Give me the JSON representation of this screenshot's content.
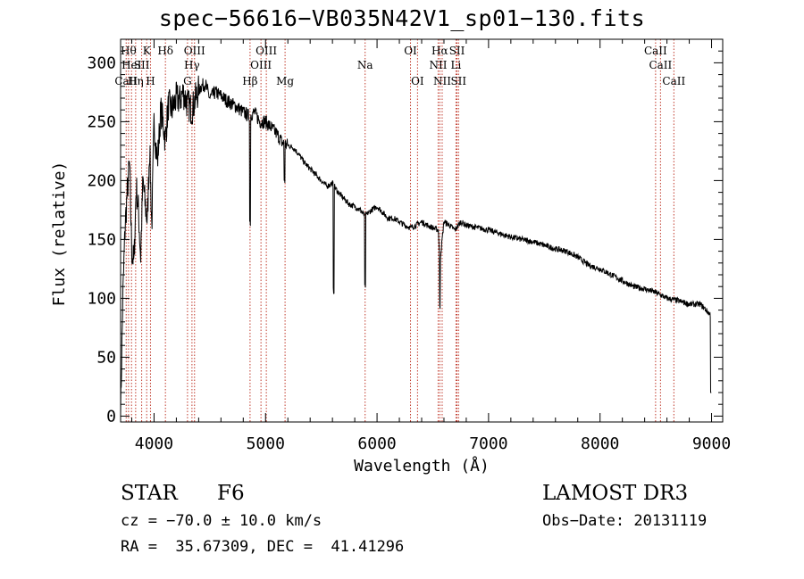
{
  "chart_data": {
    "type": "line",
    "title": "spec−56616−VB035N42V1_sp01−130.fits",
    "xlabel": "Wavelength (Å)",
    "ylabel": "Flux (relative)",
    "xlim": [
      3700,
      9100
    ],
    "ylim": [
      -5,
      320
    ],
    "x_ticks": [
      4000,
      5000,
      6000,
      7000,
      8000,
      9000
    ],
    "y_ticks": [
      0,
      50,
      100,
      150,
      200,
      250,
      300
    ],
    "series": [
      {
        "name": "flux",
        "x": [
          3700,
          3720,
          3740,
          3760,
          3780,
          3800,
          3820,
          3840,
          3860,
          3880,
          3900,
          3920,
          3940,
          3960,
          3980,
          4000,
          4030,
          4060,
          4080,
          4100,
          4130,
          4160,
          4200,
          4230,
          4260,
          4300,
          4340,
          4380,
          4420,
          4460,
          4500,
          4550,
          4600,
          4650,
          4700,
          4750,
          4800,
          4850,
          4900,
          4950,
          5000,
          5050,
          5100,
          5150,
          5200,
          5250,
          5300,
          5350,
          5400,
          5450,
          5500,
          5550,
          5600,
          5650,
          5700,
          5750,
          5800,
          5850,
          5890,
          5950,
          6000,
          6050,
          6100,
          6150,
          6200,
          6250,
          6300,
          6350,
          6400,
          6450,
          6500,
          6550,
          6563,
          6600,
          6650,
          6700,
          6750,
          6800,
          6900,
          7000,
          7100,
          7200,
          7300,
          7400,
          7500,
          7600,
          7700,
          7800,
          7900,
          8000,
          8100,
          8200,
          8300,
          8400,
          8500,
          8600,
          8700,
          8800,
          8900,
          8950,
          9000
        ],
        "y": [
          0,
          100,
          160,
          190,
          215,
          140,
          130,
          195,
          175,
          135,
          200,
          180,
          165,
          230,
          160,
          250,
          215,
          260,
          250,
          235,
          265,
          260,
          270,
          268,
          275,
          265,
          260,
          272,
          280,
          282,
          270,
          275,
          272,
          268,
          265,
          262,
          258,
          255,
          258,
          250,
          250,
          245,
          240,
          232,
          230,
          228,
          222,
          215,
          210,
          205,
          200,
          195,
          198,
          190,
          185,
          180,
          178,
          175,
          170,
          175,
          178,
          173,
          168,
          168,
          165,
          162,
          160,
          162,
          165,
          162,
          160,
          158,
          130,
          165,
          162,
          158,
          165,
          162,
          160,
          158,
          155,
          152,
          150,
          148,
          145,
          142,
          140,
          135,
          128,
          125,
          120,
          115,
          110,
          108,
          105,
          100,
          98,
          95,
          95,
          90,
          85
        ],
        "color": "#000000"
      }
    ],
    "line_ids": [
      {
        "wl": 3750,
        "row": 3,
        "label": "CaII"
      },
      {
        "wl": 3771,
        "row": 1,
        "label": "Hθ"
      },
      {
        "wl": 3798,
        "row": 2,
        "label": "HeI"
      },
      {
        "wl": 3835,
        "row": 3,
        "label": "Hη"
      },
      {
        "wl": 3889,
        "row": 2,
        "label": "SII"
      },
      {
        "wl": 3934,
        "row": 1,
        "label": "K"
      },
      {
        "wl": 3968,
        "row": 3,
        "label": "H"
      },
      {
        "wl": 4102,
        "row": 1,
        "label": "Hδ"
      },
      {
        "wl": 4300,
        "row": 3,
        "label": "G"
      },
      {
        "wl": 4340,
        "row": 2,
        "label": "Hγ"
      },
      {
        "wl": 4363,
        "row": 1,
        "label": "OIII"
      },
      {
        "wl": 4861,
        "row": 3,
        "label": "Hβ"
      },
      {
        "wl": 4959,
        "row": 2,
        "label": "OIII"
      },
      {
        "wl": 5007,
        "row": 1,
        "label": "OIII"
      },
      {
        "wl": 5175,
        "row": 3,
        "label": "Mg"
      },
      {
        "wl": 5893,
        "row": 2,
        "label": "Na"
      },
      {
        "wl": 6300,
        "row": 1,
        "label": "OI"
      },
      {
        "wl": 6363,
        "row": 3,
        "label": "OI"
      },
      {
        "wl": 6548,
        "row": 2,
        "label": "NII"
      },
      {
        "wl": 6563,
        "row": 1,
        "label": "Hα"
      },
      {
        "wl": 6584,
        "row": 3,
        "label": "NII"
      },
      {
        "wl": 6708,
        "row": 2,
        "label": "Li"
      },
      {
        "wl": 6717,
        "row": 1,
        "label": "SII"
      },
      {
        "wl": 6731,
        "row": 3,
        "label": "SII"
      },
      {
        "wl": 8498,
        "row": 1,
        "label": "CaII"
      },
      {
        "wl": 8542,
        "row": 2,
        "label": "CaII"
      },
      {
        "wl": 8662,
        "row": 3,
        "label": "CaII"
      }
    ]
  },
  "info": {
    "class": "STAR",
    "subclass": "F6",
    "survey": "LAMOST DR3",
    "cz": "cz = −70.0 ± 10.0 km/s",
    "obs_date": "Obs−Date: 20131119",
    "coords": "RA =  35.67309, DEC =  41.41296"
  }
}
